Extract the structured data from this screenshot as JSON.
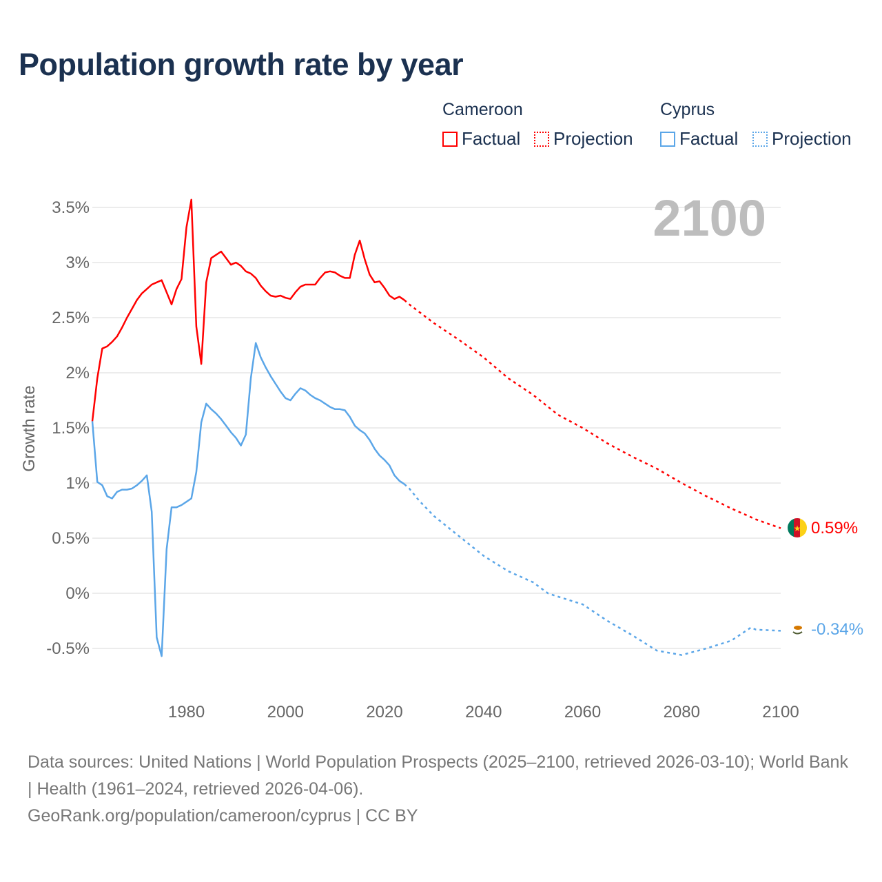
{
  "title": "Population growth rate by year",
  "legend": {
    "groups": [
      {
        "country": "Cameroon",
        "color": "#ff0000",
        "factual": "Factual",
        "projection": "Projection"
      },
      {
        "country": "Cyprus",
        "color": "#5ba6e8",
        "factual": "Factual",
        "projection": "Projection"
      }
    ]
  },
  "year_display": "2100",
  "end_labels": {
    "cameroon": "0.59%",
    "cyprus": "-0.34%"
  },
  "footer": {
    "sources": "Data sources: United Nations | World Population Prospects (2025–2100, retrieved 2026-03-10); World Bank | Health (1961–2024, retrieved 2026-04-06).",
    "credit": "GeoRank.org/population/cameroon/cyprus | CC BY"
  },
  "chart_data": {
    "type": "line",
    "title": "Population growth rate by year",
    "xlabel": "",
    "ylabel": "Growth rate",
    "xlim": [
      1961,
      2100
    ],
    "ylim": [
      -0.8,
      3.8
    ],
    "grid": true,
    "x_ticks": [
      "1980",
      "2000",
      "2020",
      "2040",
      "2060",
      "2080",
      "2100"
    ],
    "y_ticks": [
      {
        "v": -0.5,
        "label": "-0.5%"
      },
      {
        "v": 0,
        "label": "0%"
      },
      {
        "v": 0.5,
        "label": "0.5%"
      },
      {
        "v": 1,
        "label": "1%"
      },
      {
        "v": 1.5,
        "label": "1.5%"
      },
      {
        "v": 2,
        "label": "2%"
      },
      {
        "v": 2.5,
        "label": "2.5%"
      },
      {
        "v": 3,
        "label": "3%"
      },
      {
        "v": 3.5,
        "label": "3.5%"
      }
    ],
    "series": [
      {
        "name": "Cameroon",
        "color": "#ff0000",
        "factual_start": 1961,
        "factual": [
          1.56,
          1.95,
          2.22,
          2.24,
          2.28,
          2.33,
          2.41,
          2.5,
          2.58,
          2.66,
          2.72,
          2.76,
          2.8,
          2.82,
          2.84,
          2.73,
          2.62,
          2.76,
          2.85,
          3.32,
          3.57,
          2.42,
          2.08,
          2.82,
          3.04,
          3.07,
          3.1,
          3.04,
          2.98,
          3.0,
          2.97,
          2.92,
          2.9,
          2.86,
          2.79,
          2.74,
          2.7,
          2.69,
          2.7,
          2.68,
          2.67,
          2.73,
          2.78,
          2.8,
          2.8,
          2.8,
          2.86,
          2.91,
          2.92,
          2.91,
          2.88,
          2.86,
          2.86,
          3.07,
          3.2,
          3.03,
          2.89,
          2.82,
          2.83,
          2.77,
          2.7,
          2.67,
          2.69,
          2.66
        ],
        "projection_x": [
          2024,
          2025,
          2030,
          2035,
          2040,
          2045,
          2050,
          2055,
          2060,
          2065,
          2070,
          2075,
          2080,
          2085,
          2090,
          2095,
          2100
        ],
        "projection": [
          2.66,
          2.62,
          2.45,
          2.3,
          2.14,
          1.95,
          1.8,
          1.62,
          1.5,
          1.36,
          1.24,
          1.13,
          1.0,
          0.88,
          0.77,
          0.67,
          0.59
        ]
      },
      {
        "name": "Cyprus",
        "color": "#5ba6e8",
        "factual_start": 1961,
        "factual": [
          1.56,
          1.01,
          0.98,
          0.88,
          0.86,
          0.92,
          0.94,
          0.94,
          0.95,
          0.98,
          1.02,
          1.07,
          0.74,
          -0.4,
          -0.57,
          0.4,
          0.78,
          0.78,
          0.8,
          0.83,
          0.86,
          1.1,
          1.55,
          1.72,
          1.67,
          1.63,
          1.58,
          1.52,
          1.46,
          1.41,
          1.34,
          1.44,
          1.95,
          2.27,
          2.14,
          2.05,
          1.97,
          1.9,
          1.83,
          1.77,
          1.75,
          1.81,
          1.86,
          1.84,
          1.8,
          1.77,
          1.75,
          1.72,
          1.69,
          1.67,
          1.67,
          1.66,
          1.6,
          1.52,
          1.48,
          1.45,
          1.39,
          1.31,
          1.25,
          1.21,
          1.16,
          1.07,
          1.02,
          0.99
        ],
        "projection_x": [
          2024,
          2025,
          2027,
          2030,
          2035,
          2040,
          2045,
          2050,
          2053,
          2055,
          2060,
          2065,
          2070,
          2075,
          2080,
          2085,
          2090,
          2094,
          2095,
          2100
        ],
        "projection": [
          0.99,
          0.95,
          0.84,
          0.7,
          0.52,
          0.34,
          0.2,
          0.1,
          0.0,
          -0.03,
          -0.1,
          -0.25,
          -0.38,
          -0.52,
          -0.56,
          -0.5,
          -0.43,
          -0.31,
          -0.33,
          -0.34
        ]
      }
    ]
  }
}
